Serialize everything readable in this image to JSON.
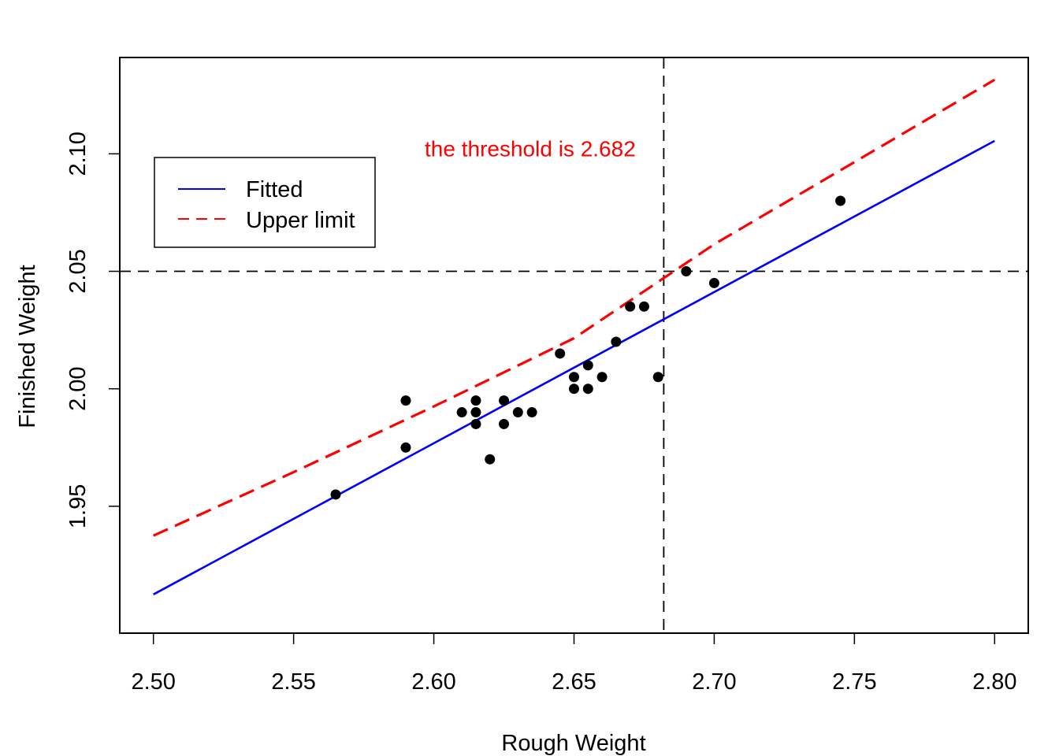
{
  "chart_data": {
    "type": "scatter",
    "title": "",
    "xlabel": "Rough Weight",
    "ylabel": "Finished Weight",
    "xlim": [
      2.488,
      2.812
    ],
    "ylim": [
      1.896,
      2.141
    ],
    "xticks": [
      {
        "value": 2.5,
        "label": "2.50"
      },
      {
        "value": 2.55,
        "label": "2.55"
      },
      {
        "value": 2.6,
        "label": "2.60"
      },
      {
        "value": 2.65,
        "label": "2.65"
      },
      {
        "value": 2.7,
        "label": "2.70"
      },
      {
        "value": 2.75,
        "label": "2.75"
      },
      {
        "value": 2.8,
        "label": "2.80"
      }
    ],
    "yticks": [
      {
        "value": 1.95,
        "label": "1.95"
      },
      {
        "value": 2.0,
        "label": "2.00"
      },
      {
        "value": 2.05,
        "label": "2.05"
      },
      {
        "value": 2.1,
        "label": "2.10"
      }
    ],
    "points": [
      {
        "x": 2.565,
        "y": 1.955
      },
      {
        "x": 2.59,
        "y": 1.975
      },
      {
        "x": 2.59,
        "y": 1.995
      },
      {
        "x": 2.61,
        "y": 1.99
      },
      {
        "x": 2.615,
        "y": 1.985
      },
      {
        "x": 2.615,
        "y": 1.99
      },
      {
        "x": 2.615,
        "y": 1.995
      },
      {
        "x": 2.62,
        "y": 1.97
      },
      {
        "x": 2.625,
        "y": 1.985
      },
      {
        "x": 2.625,
        "y": 1.995
      },
      {
        "x": 2.63,
        "y": 1.99
      },
      {
        "x": 2.635,
        "y": 1.99
      },
      {
        "x": 2.645,
        "y": 2.015
      },
      {
        "x": 2.65,
        "y": 2.0
      },
      {
        "x": 2.65,
        "y": 2.005
      },
      {
        "x": 2.655,
        "y": 2.0
      },
      {
        "x": 2.655,
        "y": 2.01
      },
      {
        "x": 2.66,
        "y": 2.005
      },
      {
        "x": 2.665,
        "y": 2.02
      },
      {
        "x": 2.67,
        "y": 2.035
      },
      {
        "x": 2.675,
        "y": 2.035
      },
      {
        "x": 2.68,
        "y": 2.005
      },
      {
        "x": 2.69,
        "y": 2.05
      },
      {
        "x": 2.7,
        "y": 2.045
      },
      {
        "x": 2.745,
        "y": 2.08
      }
    ],
    "series": [
      {
        "name": "Fitted",
        "color": "#0000ff",
        "style": "solid",
        "x": [
          2.5,
          2.8
        ],
        "y": [
          1.9125,
          2.1055
        ]
      },
      {
        "name": "Upper limit",
        "color": "#ff0000",
        "style": "dashed",
        "x": [
          2.5,
          2.55,
          2.6,
          2.65,
          2.7,
          2.75,
          2.8
        ],
        "y": [
          1.9375,
          1.9645,
          1.9925,
          2.0215,
          2.0615,
          2.0965,
          2.1315
        ]
      }
    ],
    "reference_lines": {
      "vertical_x": 2.682,
      "horizontal_y": 2.05
    },
    "legend": {
      "position": "top-left",
      "entries": [
        {
          "label": "Fitted",
          "color": "#0000ff",
          "style": "solid"
        },
        {
          "label": "Upper limit",
          "color": "#ff0000",
          "style": "dashed"
        }
      ]
    },
    "annotation": {
      "text": "the threshold is 2.682",
      "color": "#ff0000",
      "x": 2.672,
      "y": 2.099
    }
  }
}
